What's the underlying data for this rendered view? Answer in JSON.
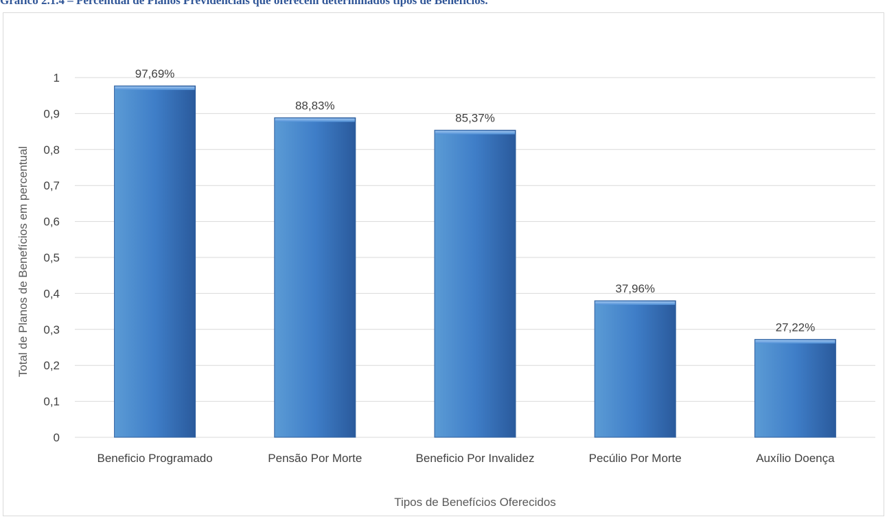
{
  "caption": "Gráfico 2.1.4 – Percentual de Planos Previdenciais que oferecem determinados tipos de Benefícios.",
  "colors": {
    "bar_top": "#5b9bd5",
    "bar_mid": "#3f7ec8",
    "bar_bottom": "#2a5a9c",
    "gridline": "#d9d9d9",
    "text": "#404040",
    "caption": "#2f5597"
  },
  "chart_data": {
    "type": "bar",
    "categories": [
      "Beneficio Programado",
      "Pensão Por Morte",
      "Beneficio Por Invalidez",
      "Pecúlio Por Morte",
      "Auxílio Doença"
    ],
    "values": [
      0.9769,
      0.8883,
      0.8537,
      0.3796,
      0.2722
    ],
    "data_labels": [
      "97,69%",
      "88,83%",
      "85,37%",
      "37,96%",
      "27,22%"
    ],
    "xlabel": "Tipos de Benefícios Oferecidos",
    "ylabel": "Total de Planos de Benefícios em percentual",
    "ylim": [
      0,
      1
    ],
    "y_ticks": [
      0,
      0.1,
      0.2,
      0.3,
      0.4,
      0.5,
      0.6,
      0.7,
      0.8,
      0.9,
      1
    ],
    "y_tick_labels": [
      "0",
      "0,1",
      "0,2",
      "0,3",
      "0,4",
      "0,5",
      "0,6",
      "0,7",
      "0,8",
      "0,9",
      "1"
    ],
    "grid": true,
    "legend": "none"
  }
}
